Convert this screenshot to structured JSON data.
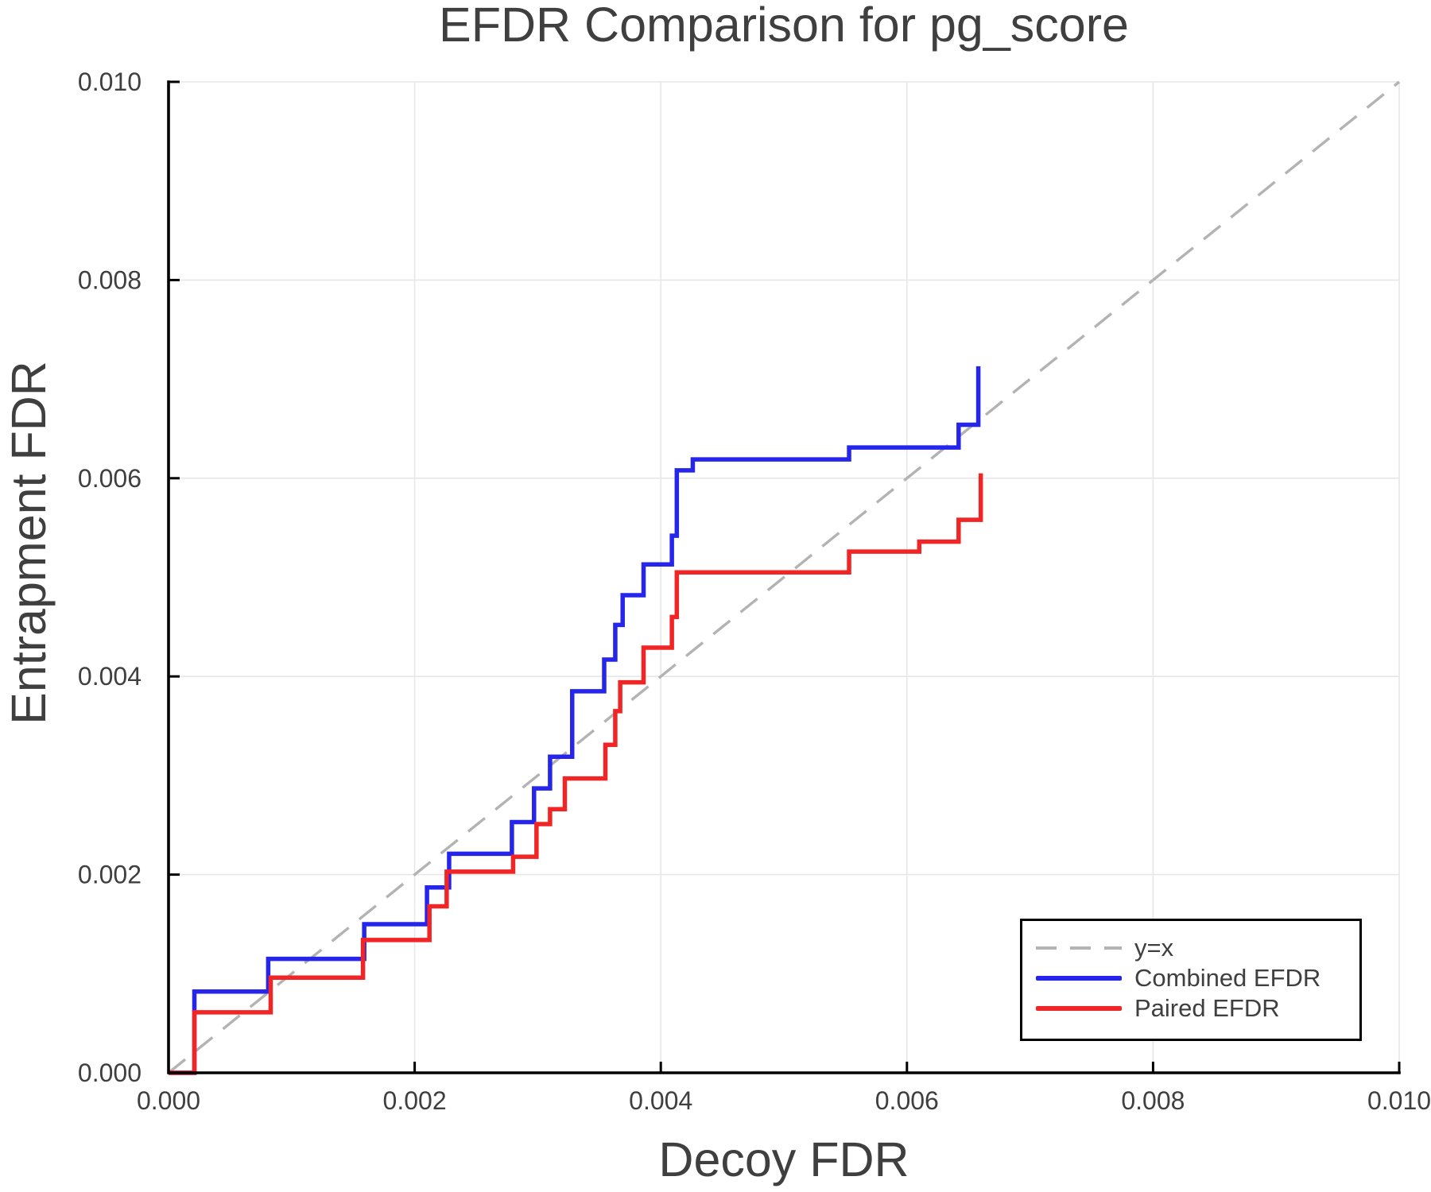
{
  "figure": {
    "background": "#ffffff"
  },
  "chart_data": {
    "type": "line",
    "title": "EFDR Comparison for pg_score",
    "xlabel": "Decoy FDR",
    "ylabel": "Entrapment FDR",
    "xlim": [
      0.0,
      0.01
    ],
    "ylim": [
      0.0,
      0.01
    ],
    "grid": true,
    "legend_position": "lower-right",
    "xticks": {
      "values": [
        0.0,
        0.002,
        0.004,
        0.006,
        0.008,
        0.01
      ],
      "labels": [
        "0.000",
        "0.002",
        "0.004",
        "0.006",
        "0.008",
        "0.010"
      ]
    },
    "yticks": {
      "values": [
        0.0,
        0.002,
        0.004,
        0.006,
        0.008,
        0.01
      ],
      "labels": [
        "0.000",
        "0.002",
        "0.004",
        "0.006",
        "0.008",
        "0.010"
      ]
    },
    "legend": {
      "entries": [
        {
          "label": "y=x",
          "style": "dashed",
          "color": "#b3b3b3"
        },
        {
          "label": "Combined EFDR",
          "style": "solid",
          "color": "#2525ec"
        },
        {
          "label": "Paired EFDR",
          "style": "solid",
          "color": "#f12525"
        }
      ]
    },
    "series": [
      {
        "name": "y=x",
        "type": "line",
        "style": "dashed",
        "color": "#b3b3b3",
        "points": [
          [
            0.0,
            0.0
          ],
          [
            0.01,
            0.01
          ]
        ]
      },
      {
        "name": "Combined EFDR",
        "type": "step",
        "style": "solid",
        "color": "#2525ec",
        "start": [
          0.0,
          0.0
        ],
        "steps": [
          [
            0.00021,
            0.00082
          ],
          [
            0.00081,
            0.00115
          ],
          [
            0.00159,
            0.0015
          ],
          [
            0.0021,
            0.00187
          ],
          [
            0.00228,
            0.00221
          ],
          [
            0.00279,
            0.00253
          ],
          [
            0.00297,
            0.00287
          ],
          [
            0.0031,
            0.00319
          ],
          [
            0.00328,
            0.00385
          ],
          [
            0.00354,
            0.00417
          ],
          [
            0.00363,
            0.00452
          ],
          [
            0.00369,
            0.00482
          ],
          [
            0.00386,
            0.00513
          ],
          [
            0.00409,
            0.00542
          ],
          [
            0.00413,
            0.00608
          ],
          [
            0.00426,
            0.00619
          ],
          [
            0.00553,
            0.00631
          ],
          [
            0.00642,
            0.00654
          ],
          [
            0.00658,
            0.00713
          ]
        ]
      },
      {
        "name": "Paired EFDR",
        "type": "step",
        "style": "solid",
        "color": "#f12525",
        "start": [
          0.0,
          0.0
        ],
        "steps": [
          [
            0.00021,
            0.00061
          ],
          [
            0.00083,
            0.00096
          ],
          [
            0.00158,
            0.00134
          ],
          [
            0.00212,
            0.00168
          ],
          [
            0.00226,
            0.00203
          ],
          [
            0.0028,
            0.00218
          ],
          [
            0.00299,
            0.00251
          ],
          [
            0.0031,
            0.00266
          ],
          [
            0.00322,
            0.00297
          ],
          [
            0.00355,
            0.00331
          ],
          [
            0.00363,
            0.00365
          ],
          [
            0.00367,
            0.00394
          ],
          [
            0.00386,
            0.00429
          ],
          [
            0.00409,
            0.0046
          ],
          [
            0.00413,
            0.00505
          ],
          [
            0.00553,
            0.00526
          ],
          [
            0.0061,
            0.00536
          ],
          [
            0.00642,
            0.00558
          ],
          [
            0.0066,
            0.00605
          ]
        ]
      }
    ],
    "colors": {
      "grid": "#e7e7e7",
      "axis": "#000000",
      "text": "#3f3f3f",
      "diagonal": "#b3b3b3",
      "combined": "#2525ec",
      "paired": "#f12525"
    }
  }
}
